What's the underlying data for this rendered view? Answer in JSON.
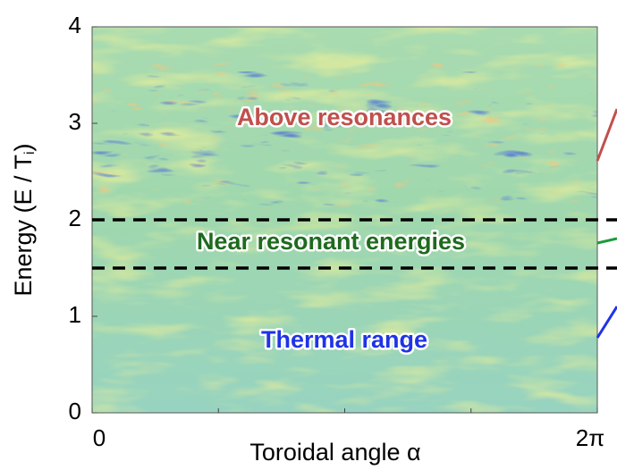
{
  "chart_data": {
    "type": "heatmap",
    "xlabel": "Toroidal angle α",
    "ylabel": [
      "Energy (E / T",
      "i",
      ")"
    ],
    "xlim": [
      0,
      6.283185307179586
    ],
    "xticks": [
      0,
      {
        "value": 6.283185307179586,
        "label": "2π"
      }
    ],
    "ylim": [
      0,
      4
    ],
    "yticks": [
      0,
      1,
      2,
      3,
      4
    ],
    "hlines": [
      1.5,
      2
    ],
    "annotations": [
      {
        "text": "Above resonances",
        "color": "#c0504d",
        "connector": "#c0504d"
      },
      {
        "text": "Near resonant energies",
        "color": "#1e6a1e",
        "connector": "#1e9a3a"
      },
      {
        "text": "Thermal range",
        "color": "#1f33e6",
        "connector": "#1f33e6"
      }
    ]
  }
}
